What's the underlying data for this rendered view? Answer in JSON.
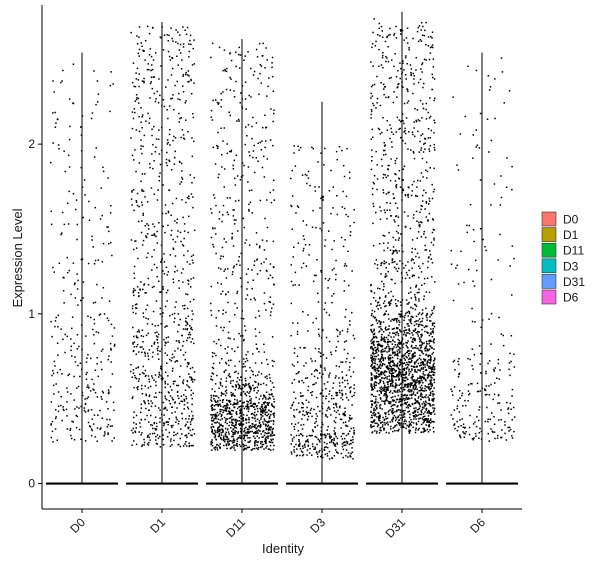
{
  "chart_data": {
    "type": "scatter",
    "subtype": "violin-jitter",
    "title": "",
    "xlabel": "Identity",
    "ylabel": "Expression Level",
    "categories": [
      "D0",
      "D1",
      "D11",
      "D3",
      "D31",
      "D6"
    ],
    "ylim": [
      -0.15,
      2.82
    ],
    "yticks": [
      0,
      1,
      2
    ],
    "grid": false,
    "legend_position": "right",
    "legend": [
      {
        "label": "D0",
        "color": "#F8766D"
      },
      {
        "label": "D1",
        "color": "#B79F00"
      },
      {
        "label": "D11",
        "color": "#00BA38"
      },
      {
        "label": "D3",
        "color": "#00BFC4"
      },
      {
        "label": "D31",
        "color": "#619CFF"
      },
      {
        "label": "D6",
        "color": "#F564E3"
      }
    ],
    "series": [
      {
        "category": "D0",
        "violin_max": 2.54,
        "nonzero_range": [
          0.25,
          2.5
        ],
        "nonzero_density": "sparse"
      },
      {
        "category": "D1",
        "violin_max": 2.72,
        "nonzero_range": [
          0.22,
          2.7
        ],
        "nonzero_density": "medium"
      },
      {
        "category": "D11",
        "violin_max": 2.62,
        "nonzero_range": [
          0.2,
          2.6
        ],
        "nonzero_density": "medium, concentrated 0.2-0.6"
      },
      {
        "category": "D3",
        "violin_max": 2.25,
        "nonzero_range": [
          0.15,
          2.0
        ],
        "nonzero_density": "sparse-medium"
      },
      {
        "category": "D31",
        "violin_max": 2.78,
        "nonzero_range": [
          0.3,
          2.75
        ],
        "nonzero_density": "dense, concentrated 0.4-1.0"
      },
      {
        "category": "D6",
        "violin_max": 2.54,
        "nonzero_range": [
          0.25,
          2.55
        ],
        "nonzero_density": "sparse"
      }
    ]
  }
}
